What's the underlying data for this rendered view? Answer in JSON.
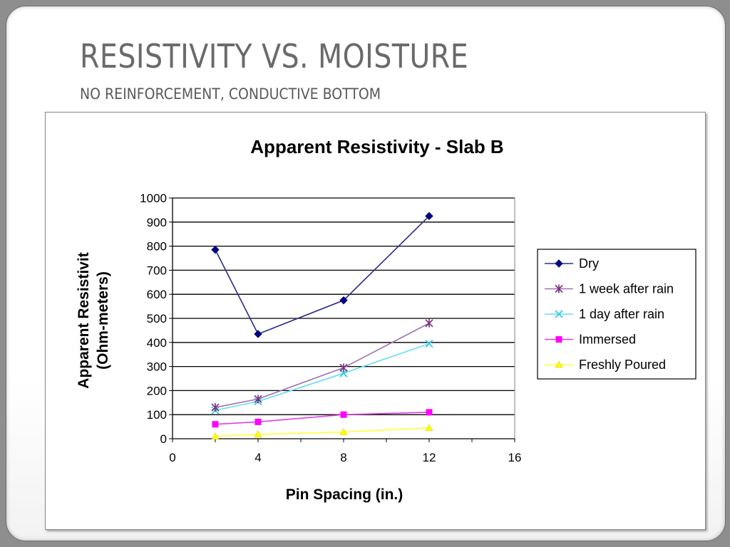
{
  "slide": {
    "title": "RESISTIVITY VS. MOISTURE",
    "subtitle": "NO REINFORCEMENT, CONDUCTIVE BOTTOM"
  },
  "chart_data": {
    "type": "line",
    "title": "Apparent Resistivity - Slab B",
    "xlabel": "Pin Spacing (in.)",
    "ylabel_line1": "Apparent Resistivit",
    "ylabel_line2": "(Ohm-meters)",
    "xlim": [
      0,
      16
    ],
    "ylim": [
      0,
      1000
    ],
    "xticks": [
      0,
      4,
      8,
      12,
      16
    ],
    "yticks": [
      0,
      100,
      200,
      300,
      400,
      500,
      600,
      700,
      800,
      900,
      1000
    ],
    "grid": "horizontal",
    "legend_position": "right",
    "x": [
      2,
      4,
      8,
      12
    ],
    "series": [
      {
        "name": "Dry",
        "values": [
          785,
          435,
          575,
          925
        ],
        "line_color": "#2b2b8a",
        "marker_color": "#000080",
        "marker": "diamond"
      },
      {
        "name": "1 week after rain",
        "values": [
          130,
          165,
          295,
          480
        ],
        "line_color": "#a070b0",
        "marker_color": "#7a2e7a",
        "marker": "star"
      },
      {
        "name": "1 day after rain",
        "values": [
          118,
          155,
          272,
          395
        ],
        "line_color": "#66ddee",
        "marker_color": "#33ccee",
        "marker": "x"
      },
      {
        "name": "Immersed",
        "values": [
          60,
          70,
          100,
          110
        ],
        "line_color": "#e040e0",
        "marker_color": "#ff00ff",
        "marker": "square"
      },
      {
        "name": "Freshly Poured",
        "values": [
          10,
          18,
          28,
          45
        ],
        "line_color": "#ffff33",
        "marker_color": "#ffff00",
        "marker": "triangle"
      }
    ]
  }
}
